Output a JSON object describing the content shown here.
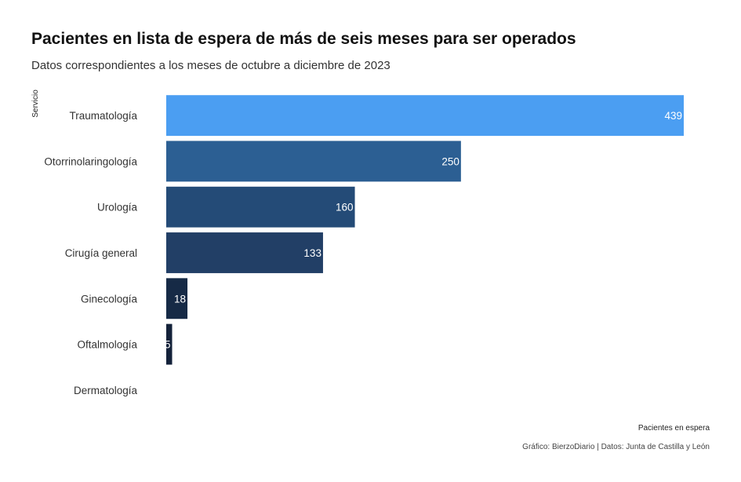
{
  "chart_data": {
    "type": "bar",
    "orientation": "horizontal",
    "title": "Pacientes en lista de espera de más de seis meses para ser operados",
    "subtitle": "Datos correspondientes a los meses de octubre a diciembre de 2023",
    "ylabel": "Servicio",
    "xlabel": "Pacientes en espera",
    "caption": "Gráfico: BierzoDiario | Datos: Junta de Castilla y León",
    "categories": [
      "Traumatología",
      "Otorrinolaringología",
      "Urología",
      "Cirugía general",
      "Ginecología",
      "Oftalmología",
      "Dermatología"
    ],
    "values": [
      439,
      250,
      160,
      133,
      18,
      5,
      0
    ],
    "value_labels": [
      "439",
      "250",
      "160",
      "133",
      "18",
      "5",
      ""
    ],
    "xlim": [
      0,
      439
    ],
    "colors": [
      "#4b9ef2",
      "#2c5f93",
      "#244b77",
      "#223f66",
      "#162a46",
      "#14223a",
      "#14223a"
    ],
    "grid": false,
    "legend": "none"
  }
}
